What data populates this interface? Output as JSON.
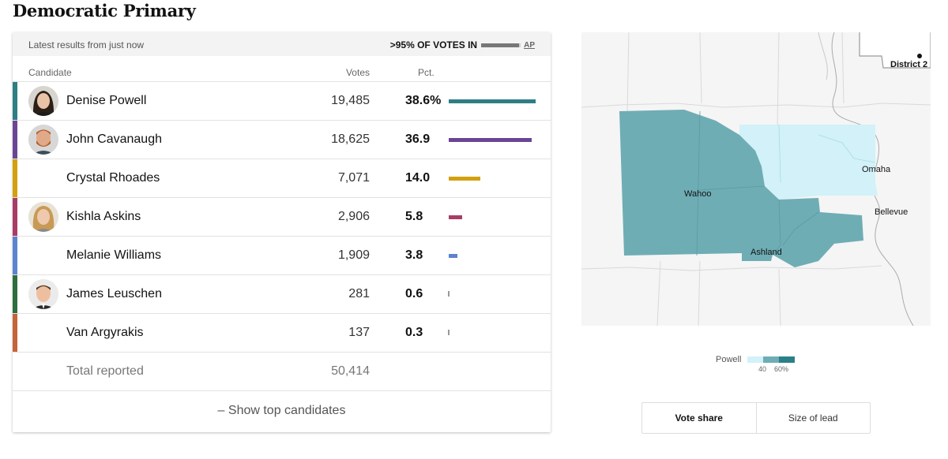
{
  "title": "Democratic Primary",
  "status": {
    "latest": "Latest results from just now",
    "votes_in": ">95% OF VOTES IN",
    "source": "AP",
    "reporting_pct": 95
  },
  "headers": {
    "candidate": "Candidate",
    "votes": "Votes",
    "pct": "Pct."
  },
  "candidates": [
    {
      "name": "Denise Powell",
      "votes": "19,485",
      "pct": "38.6%",
      "pct_value": 38.6,
      "color": "#2f7d85",
      "photo": "woman-dark-hair"
    },
    {
      "name": "John Cavanaugh",
      "votes": "18,625",
      "pct": "36.9",
      "pct_value": 36.9,
      "color": "#6b4595",
      "photo": "man-beard"
    },
    {
      "name": "Crystal Rhoades",
      "votes": "7,071",
      "pct": "14.0",
      "pct_value": 14.0,
      "color": "#d3a010",
      "photo": ""
    },
    {
      "name": "Kishla Askins",
      "votes": "2,906",
      "pct": "5.8",
      "pct_value": 5.8,
      "color": "#a83c64",
      "photo": "woman-blonde"
    },
    {
      "name": "Melanie Williams",
      "votes": "1,909",
      "pct": "3.8",
      "pct_value": 3.8,
      "color": "#5d82cf",
      "photo": ""
    },
    {
      "name": "James Leuschen",
      "votes": "281",
      "pct": "0.6",
      "pct_value": 0.6,
      "color": "#2d6e3c",
      "photo": "man-short-hair"
    },
    {
      "name": "Van Argyrakis",
      "votes": "137",
      "pct": "0.3",
      "pct_value": 0.3,
      "color": "#c5633b",
      "photo": ""
    }
  ],
  "total": {
    "label": "Total reported",
    "votes": "50,414"
  },
  "show_toggle": "– Show top candidates",
  "map": {
    "labels": {
      "omaha": "Omaha",
      "wahoo": "Wahoo",
      "bellevue": "Bellevue",
      "ashland": "Ashland",
      "district": "District 2"
    },
    "colors": {
      "strong": "#6fadb5",
      "light": "#d2f1f8",
      "background": "#f5f5f5"
    }
  },
  "legend": {
    "name": "Powell",
    "ticks": [
      "40",
      "60%"
    ],
    "colors": [
      "#d2f1f8",
      "#6fadb5",
      "#2a8088"
    ]
  },
  "view_toggle": {
    "vote_share": "Vote share",
    "size_of_lead": "Size of lead"
  }
}
